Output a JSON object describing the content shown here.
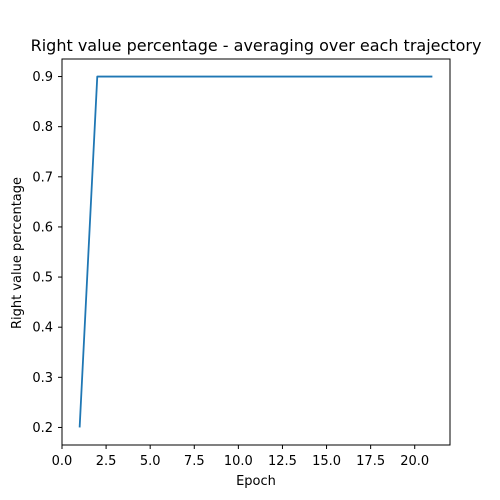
{
  "chart_data": {
    "type": "line",
    "title": "Right value percentage - averaging over each trajectory",
    "xlabel": "Epoch",
    "ylabel": "Right value percentage",
    "x_ticks": [
      "0.0",
      "2.5",
      "5.0",
      "7.5",
      "10.0",
      "12.5",
      "15.0",
      "17.5",
      "20.0"
    ],
    "y_ticks": [
      "0.2",
      "0.3",
      "0.4",
      "0.5",
      "0.6",
      "0.7",
      "0.8",
      "0.9"
    ],
    "xlim": [
      0.0,
      22.0
    ],
    "ylim": [
      0.165,
      0.935
    ],
    "grid": false,
    "series": [
      {
        "color": "#1f77b4",
        "x": [
          1,
          2,
          3,
          4,
          5,
          6,
          7,
          8,
          9,
          10,
          11,
          12,
          13,
          14,
          15,
          16,
          17,
          18,
          19,
          20,
          21
        ],
        "y": [
          0.2,
          0.9,
          0.9,
          0.9,
          0.9,
          0.9,
          0.9,
          0.9,
          0.9,
          0.9,
          0.9,
          0.9,
          0.9,
          0.9,
          0.9,
          0.9,
          0.9,
          0.9,
          0.9,
          0.9,
          0.9
        ]
      }
    ]
  }
}
